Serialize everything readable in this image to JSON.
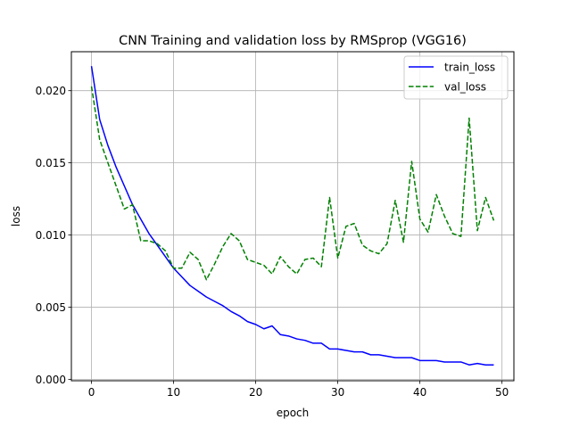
{
  "chart_data": {
    "type": "line",
    "title": "CNN Training and validation loss by RMSprop (VGG16)",
    "xlabel": "epoch",
    "ylabel": "loss",
    "xlim": [
      -2.45,
      51.45
    ],
    "ylim": [
      -0.0001,
      0.0227
    ],
    "xticks": [
      0,
      10,
      20,
      30,
      40,
      50
    ],
    "xtick_labels": [
      "0",
      "10",
      "20",
      "30",
      "40",
      "50"
    ],
    "yticks": [
      0.0,
      0.005,
      0.01,
      0.015,
      0.02
    ],
    "ytick_labels": [
      "0.000",
      "0.005",
      "0.010",
      "0.015",
      "0.020"
    ],
    "grid": true,
    "legend_position": "upper right",
    "x": [
      0,
      1,
      2,
      3,
      4,
      5,
      6,
      7,
      8,
      9,
      10,
      11,
      12,
      13,
      14,
      15,
      16,
      17,
      18,
      19,
      20,
      21,
      22,
      23,
      24,
      25,
      26,
      27,
      28,
      29,
      30,
      31,
      32,
      33,
      34,
      35,
      36,
      37,
      38,
      39,
      40,
      41,
      42,
      43,
      44,
      45,
      46,
      47,
      48,
      49
    ],
    "series": [
      {
        "name": "train_loss",
        "color": "#0000ff",
        "style": "solid",
        "values": [
          0.0217,
          0.018,
          0.0162,
          0.0147,
          0.0134,
          0.0121,
          0.0111,
          0.0101,
          0.0093,
          0.0085,
          0.0077,
          0.0071,
          0.0065,
          0.0061,
          0.0057,
          0.0054,
          0.0051,
          0.0047,
          0.0044,
          0.004,
          0.0038,
          0.0035,
          0.0037,
          0.0031,
          0.003,
          0.0028,
          0.0027,
          0.0025,
          0.0025,
          0.0021,
          0.0021,
          0.002,
          0.0019,
          0.0019,
          0.0017,
          0.0017,
          0.0016,
          0.0015,
          0.0015,
          0.0015,
          0.0013,
          0.0013,
          0.0013,
          0.0012,
          0.0012,
          0.0012,
          0.001,
          0.0011,
          0.001,
          0.001
        ]
      },
      {
        "name": "val_loss",
        "color": "#008000",
        "style": "dashed",
        "values": [
          0.0203,
          0.0166,
          0.015,
          0.0134,
          0.0118,
          0.0121,
          0.0096,
          0.0096,
          0.0094,
          0.0089,
          0.0077,
          0.0077,
          0.0088,
          0.0083,
          0.0069,
          0.008,
          0.0092,
          0.0101,
          0.0096,
          0.0083,
          0.0081,
          0.0079,
          0.0073,
          0.0085,
          0.0078,
          0.0073,
          0.0083,
          0.0084,
          0.0078,
          0.0126,
          0.0084,
          0.0106,
          0.0108,
          0.0093,
          0.0089,
          0.0087,
          0.0094,
          0.0124,
          0.0095,
          0.0151,
          0.0111,
          0.0102,
          0.0128,
          0.0113,
          0.0101,
          0.0099,
          0.0181,
          0.0103,
          0.0126,
          0.011
        ]
      }
    ]
  }
}
